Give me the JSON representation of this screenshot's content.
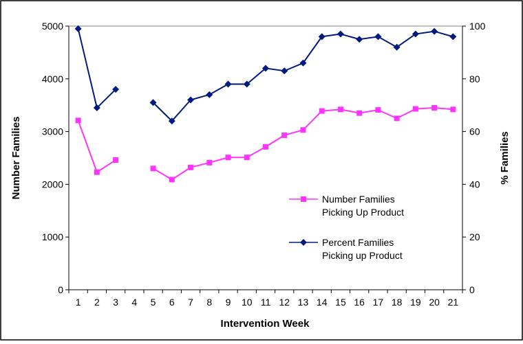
{
  "chart_data": {
    "type": "line",
    "x": [
      1,
      2,
      3,
      4,
      5,
      6,
      7,
      8,
      9,
      10,
      11,
      12,
      13,
      14,
      15,
      16,
      17,
      18,
      19,
      20,
      21
    ],
    "xlabel": "Intervention Week",
    "ylabel": "Number Families",
    "y2label": "% Families",
    "ylim": [
      0,
      5000
    ],
    "y2lim": [
      0,
      100
    ],
    "yticks": [
      "0",
      "1000",
      "2000",
      "3000",
      "4000",
      "5000"
    ],
    "y2ticks": [
      "0",
      "20",
      "40",
      "60",
      "80",
      "100"
    ],
    "xticks": [
      "1",
      "2",
      "3",
      "4",
      "5",
      "6",
      "7",
      "8",
      "9",
      "10",
      "11",
      "12",
      "13",
      "14",
      "15",
      "16",
      "17",
      "18",
      "19",
      "20",
      "21"
    ],
    "grid": false,
    "legend_position": "right",
    "series": [
      {
        "name_line1": "Number Families",
        "name_line2": "Picking Up Product",
        "axis": "left",
        "color": "#ff33ff",
        "marker": "square",
        "values": [
          3210,
          2230,
          2460,
          null,
          2300,
          2090,
          2320,
          2410,
          2510,
          2510,
          2710,
          2930,
          3030,
          3390,
          3420,
          3350,
          3410,
          3250,
          3430,
          3450,
          3420
        ]
      },
      {
        "name_line1": "Percent Families",
        "name_line2": "Picking up Product",
        "axis": "right",
        "color": "#001a80",
        "marker": "diamond",
        "values": [
          99,
          69,
          76,
          null,
          71,
          64,
          72,
          74,
          78,
          78,
          84,
          83,
          86,
          96,
          97,
          95,
          96,
          92,
          97,
          98,
          96
        ]
      }
    ]
  }
}
